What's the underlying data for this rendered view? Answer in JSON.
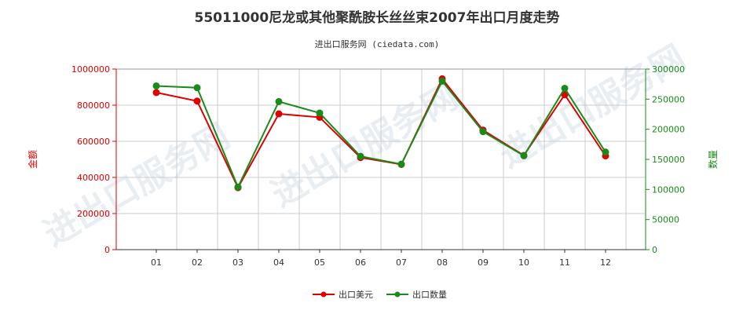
{
  "title": "55011000尼龙或其他聚酰胺长丝丝束2007年出口月度走势",
  "subtitle": "进出口服务网 (ciedata.com)",
  "watermark": "进出口服务网",
  "colors": {
    "usd": "#e00000",
    "qty": "#1a8a1a",
    "grid": "#cccccc",
    "axis": "#333333"
  },
  "chart_data": {
    "type": "line",
    "categories": [
      "01",
      "02",
      "03",
      "04",
      "05",
      "06",
      "07",
      "08",
      "09",
      "10",
      "11",
      "12"
    ],
    "y_left": {
      "label": "金额",
      "min": 0,
      "max": 1000000,
      "ticks": [
        0,
        200000,
        400000,
        600000,
        800000,
        1000000
      ],
      "tick_labels": [
        "0",
        "200000",
        "400000",
        "600000",
        "800000",
        "1000000"
      ]
    },
    "y_right": {
      "label": "数量",
      "min": 0,
      "max": 300000,
      "ticks": [
        0,
        50000,
        100000,
        150000,
        200000,
        250000,
        300000
      ],
      "tick_labels": [
        "0",
        "50000",
        "100000",
        "150000",
        "200000",
        "250000",
        "300000"
      ]
    },
    "series": [
      {
        "name": "出口美元",
        "axis": "left",
        "color": "#e00000",
        "values": [
          870000,
          823000,
          343000,
          752000,
          733000,
          510000,
          472000,
          946000,
          662000,
          522000,
          858000,
          519000
        ]
      },
      {
        "name": "出口数量",
        "axis": "right",
        "color": "#1a8a1a",
        "values": [
          272000,
          269000,
          104000,
          246000,
          227000,
          155000,
          142000,
          280000,
          196000,
          156000,
          268000,
          162000
        ]
      }
    ],
    "grid": true,
    "legend_position": "bottom-center"
  }
}
